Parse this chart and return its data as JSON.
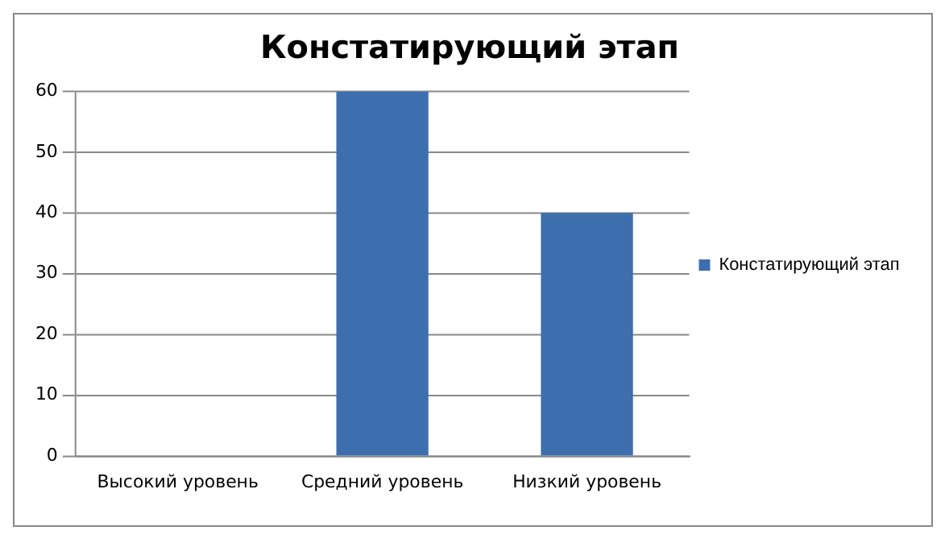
{
  "chart_data": {
    "type": "bar",
    "title": "Констатирующий этап",
    "categories": [
      "Высокий уровень",
      "Средний уровень",
      "Низкий уровень"
    ],
    "series": [
      {
        "name": "Констатирующий этап",
        "color": "#3d6fae",
        "values": [
          0,
          60,
          40
        ]
      }
    ],
    "ylim": [
      0,
      60
    ],
    "yticks": [
      0,
      10,
      20,
      30,
      40,
      50,
      60
    ],
    "grid": "y",
    "legend": "right"
  }
}
